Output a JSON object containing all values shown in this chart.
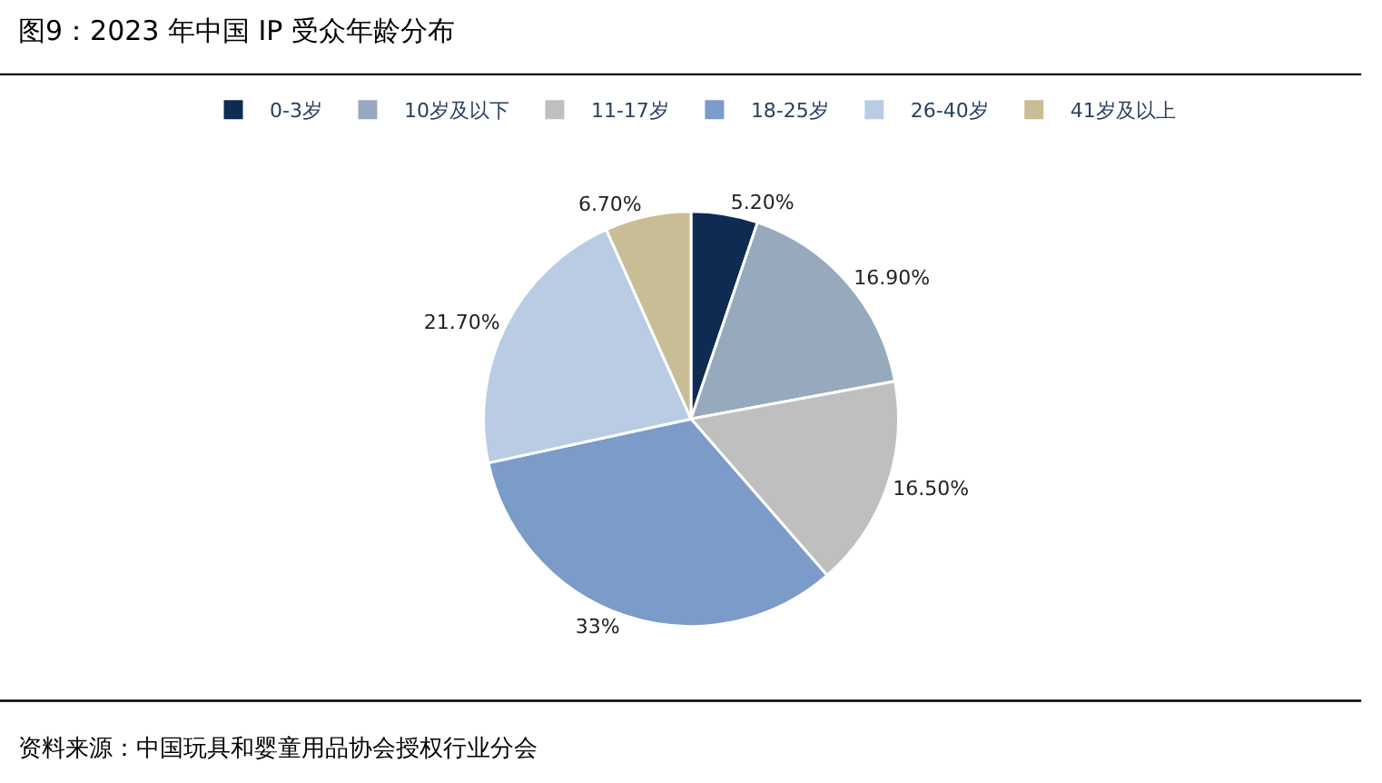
{
  "chart_data": {
    "type": "pie",
    "title": "图9：2023 年中国 IP 受众年龄分布",
    "categories": [
      "0-3岁",
      "10岁及以下",
      "11-17岁",
      "18-25岁",
      "26-40岁",
      "41岁及以上"
    ],
    "values": [
      5.2,
      16.9,
      16.5,
      33,
      21.7,
      6.7
    ],
    "value_labels": [
      "5.20%",
      "16.90%",
      "16.50%",
      "33%",
      "21.70%",
      "6.70%"
    ],
    "colors": [
      "#0e2b52",
      "#97a9bc",
      "#bfbfbf",
      "#7b9bc9",
      "#b9cce4",
      "#c8bd95"
    ],
    "legend": "top",
    "annotations": [
      "资料来源：中国玩具和婴童用品协会授权行业分会"
    ]
  }
}
